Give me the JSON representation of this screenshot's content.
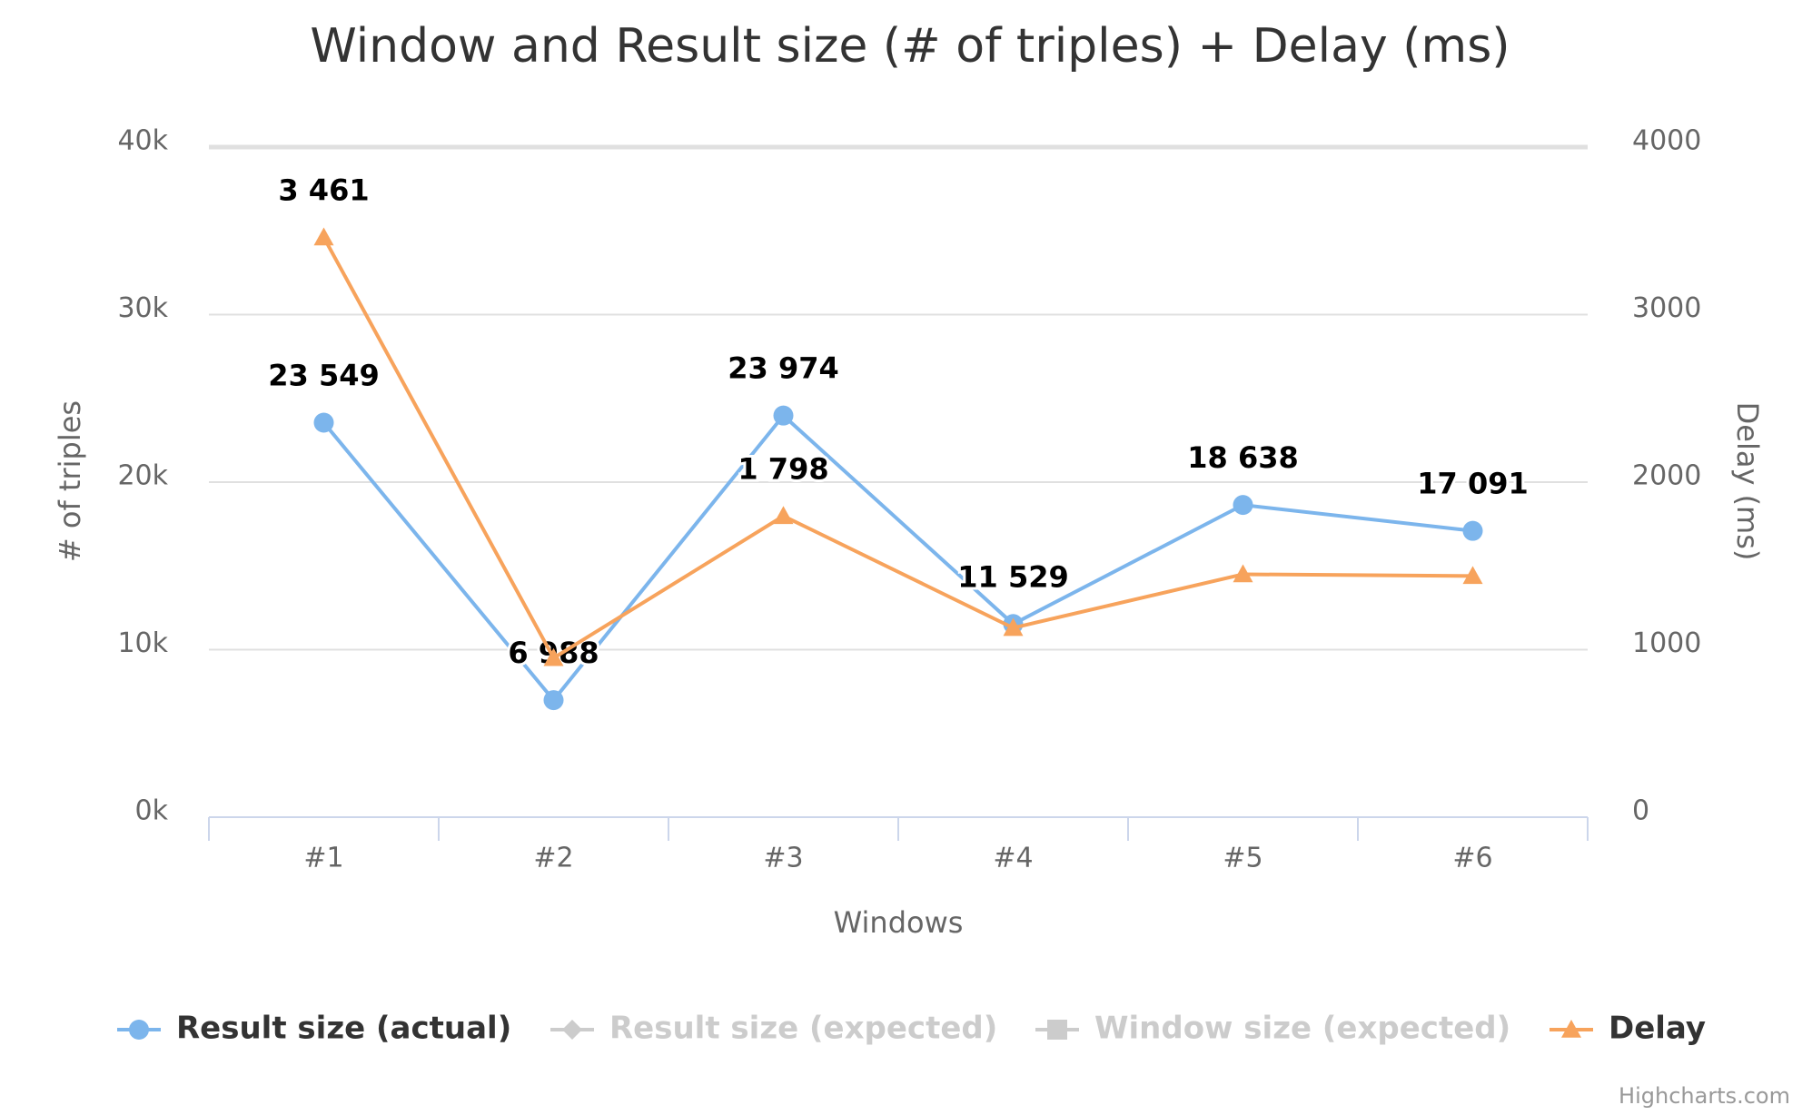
{
  "chart_data": {
    "type": "line",
    "title": "Window and Result size (# of triples) + Delay (ms)",
    "x_label": "Windows",
    "y_label": "# of triples",
    "y2_label": "Delay (ms)",
    "credits": "Highcharts.com",
    "categories": [
      "#1",
      "#2",
      "#3",
      "#4",
      "#5",
      "#6"
    ],
    "ylim": [
      0,
      40000
    ],
    "yticks": [
      {
        "value": 0,
        "label": "0k"
      },
      {
        "value": 10000,
        "label": "10k"
      },
      {
        "value": 20000,
        "label": "20k"
      },
      {
        "value": 30000,
        "label": "30k"
      },
      {
        "value": 40000,
        "label": "40k"
      }
    ],
    "y2lim": [
      0,
      4000
    ],
    "y2ticks": [
      0,
      1000,
      2000,
      3000,
      4000
    ],
    "grid": true,
    "legend": "bottom",
    "series": [
      {
        "name": "Result size (actual)",
        "color": "#7cb5ec",
        "marker": "circle",
        "axis": "y",
        "values": [
          23549,
          6988,
          23974,
          11529,
          18638,
          17091
        ],
        "value_labels": [
          "23 549",
          "6 988",
          "23 974",
          "11 529",
          "18 638",
          "17 091"
        ]
      },
      {
        "name": "Result size (expected)",
        "color": "#cccccc",
        "marker": "diamond",
        "visible": false
      },
      {
        "name": "Window size (expected)",
        "color": "#cccccc",
        "marker": "square",
        "visible": false
      },
      {
        "name": "Delay",
        "color": "#f7a35c",
        "marker": "triangle",
        "axis": "y2",
        "values": [
          3461,
          950,
          1798,
          1130,
          1450,
          1440
        ],
        "value_labels": [
          "3 461",
          null,
          "1 798",
          null,
          null,
          null
        ]
      }
    ]
  }
}
